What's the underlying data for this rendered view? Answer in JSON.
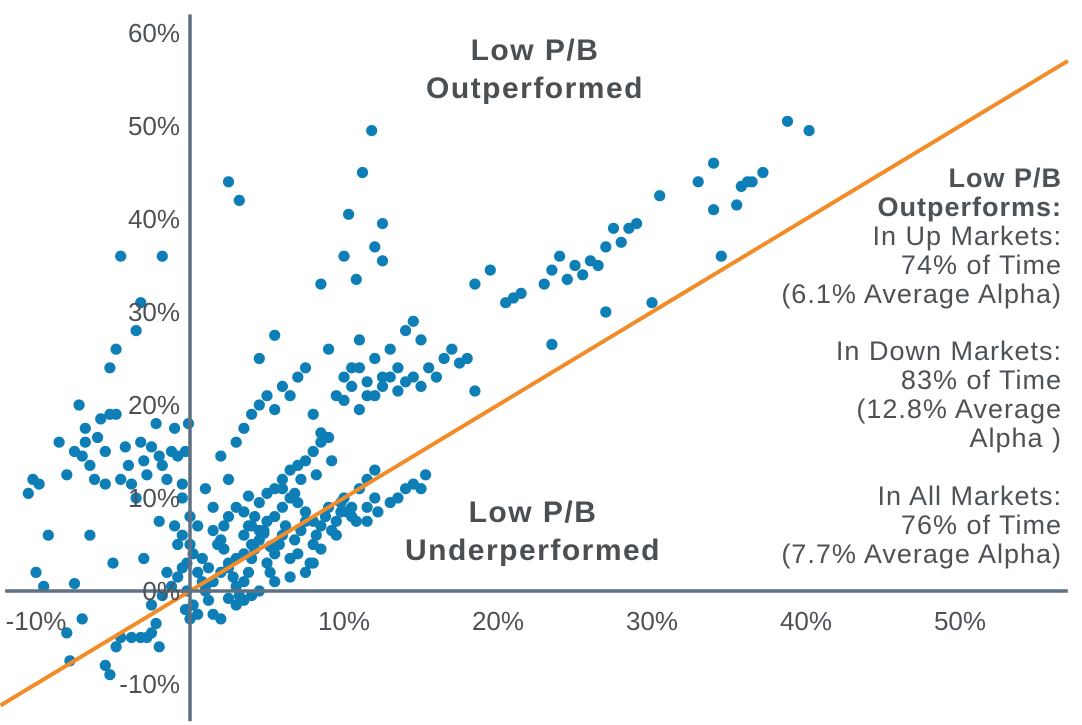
{
  "chart_data": {
    "type": "scatter",
    "xlim": [
      -12,
      57
    ],
    "ylim": [
      -14,
      62
    ],
    "x_ticks": [
      {
        "value": -10,
        "label": "-10%"
      },
      {
        "value": 10,
        "label": "10%"
      },
      {
        "value": 20,
        "label": "20%"
      },
      {
        "value": 30,
        "label": "30%"
      },
      {
        "value": 40,
        "label": "40%"
      },
      {
        "value": 50,
        "label": "50%"
      }
    ],
    "y_ticks": [
      {
        "value": -10,
        "label": "-10%"
      },
      {
        "value": 0,
        "label": "0%"
      },
      {
        "value": 10,
        "label": "10%"
      },
      {
        "value": 20,
        "label": "20%"
      },
      {
        "value": 30,
        "label": "30%"
      },
      {
        "value": 40,
        "label": "40%"
      },
      {
        "value": 50,
        "label": "50%"
      },
      {
        "value": 60,
        "label": "60%"
      }
    ],
    "reference_line": {
      "slope": 1,
      "intercept": 0
    },
    "colors": {
      "points": "#0e7eb6",
      "reference_line": "#f28c28",
      "axis": "#5e7182",
      "text": "#4d5257"
    },
    "regions": {
      "upper": [
        "Low P/B",
        "Outperformed"
      ],
      "lower": [
        "Low P/B",
        "Underperformed"
      ]
    },
    "annotation": {
      "bold_lines": [
        "Low P/B",
        "Outperforms:"
      ],
      "groups": [
        [
          "In Up Markets:",
          "74% of Time",
          "(6.1% Average Alpha)"
        ],
        [
          "In Down Markets:",
          "83% of Time",
          "(12.8% Average",
          "Alpha )"
        ],
        [
          "In All Markets:",
          "76% of Time",
          "(7.7% Average Alpha)"
        ]
      ]
    },
    "points": [
      [
        -10.2,
        12
      ],
      [
        -10.5,
        10.5
      ],
      [
        -9.8,
        11.5
      ],
      [
        -10,
        2
      ],
      [
        -9.5,
        0.5
      ],
      [
        -9.2,
        6
      ],
      [
        -8.5,
        16
      ],
      [
        -8,
        12.5
      ],
      [
        -7.5,
        15
      ],
      [
        -7.2,
        20
      ],
      [
        -6.8,
        16
      ],
      [
        -7,
        14.5
      ],
      [
        -6.5,
        13.5
      ],
      [
        -6.8,
        17.5
      ],
      [
        -6.2,
        12
      ],
      [
        -6,
        16.5
      ],
      [
        -5.8,
        18.5
      ],
      [
        -5.5,
        15
      ],
      [
        -5.2,
        19
      ],
      [
        -5.5,
        11.5
      ],
      [
        -4.8,
        19
      ],
      [
        -4.5,
        12
      ],
      [
        -4.2,
        15.5
      ],
      [
        -4,
        13.5
      ],
      [
        -3.8,
        11.5
      ],
      [
        -3.5,
        10
      ],
      [
        -3.2,
        16
      ],
      [
        -3,
        14
      ],
      [
        -2.8,
        12.5
      ],
      [
        -2.5,
        15.5
      ],
      [
        -2.2,
        18
      ],
      [
        -2,
        14.5
      ],
      [
        -1.8,
        13.5
      ],
      [
        -1.5,
        12
      ],
      [
        -1.2,
        15
      ],
      [
        -1,
        17.5
      ],
      [
        -0.8,
        14.5
      ],
      [
        -0.5,
        11.5
      ],
      [
        -0.3,
        15
      ],
      [
        -0.1,
        18
      ],
      [
        -5.2,
        24
      ],
      [
        -4.8,
        26
      ],
      [
        -4.5,
        36
      ],
      [
        -3.5,
        28
      ],
      [
        -3.2,
        31
      ],
      [
        -1.8,
        36
      ],
      [
        -6.5,
        6
      ],
      [
        -5,
        3
      ],
      [
        -3,
        3.5
      ],
      [
        -1.5,
        2
      ],
      [
        -2,
        7.5
      ],
      [
        -7.5,
        0.8
      ],
      [
        -8,
        -4.5
      ],
      [
        -7.8,
        -7.5
      ],
      [
        -7,
        -3
      ],
      [
        -5.5,
        -8
      ],
      [
        -5.2,
        -9
      ],
      [
        -4.8,
        -6
      ],
      [
        -4.5,
        -5
      ],
      [
        -3.8,
        -5
      ],
      [
        -3.2,
        -5
      ],
      [
        -2.8,
        -5
      ],
      [
        -2.5,
        -4.5
      ],
      [
        -2.2,
        -3.5
      ],
      [
        -2,
        -6
      ],
      [
        -2.5,
        -1.5
      ],
      [
        -1.8,
        -0.5
      ],
      [
        -1.2,
        0.5
      ],
      [
        -0.8,
        1.5
      ],
      [
        -0.5,
        2.5
      ],
      [
        -0.2,
        3
      ],
      [
        -0.8,
        5
      ],
      [
        -1,
        7
      ],
      [
        -0.5,
        6
      ],
      [
        0,
        5
      ],
      [
        0.2,
        4
      ],
      [
        0.5,
        2
      ],
      [
        0.8,
        1
      ],
      [
        1,
        0
      ],
      [
        1.2,
        -1
      ],
      [
        0.5,
        -2.5
      ],
      [
        0,
        -3
      ],
      [
        -0.3,
        -2
      ],
      [
        1.5,
        -2.5
      ],
      [
        2,
        -3
      ],
      [
        0.8,
        3.5
      ],
      [
        1.2,
        2.5
      ],
      [
        1.5,
        6.5
      ],
      [
        2,
        5.5
      ],
      [
        2.2,
        4.5
      ],
      [
        2.5,
        3
      ],
      [
        2.8,
        1.5
      ],
      [
        3,
        0.5
      ],
      [
        3.2,
        -0.5
      ],
      [
        3.5,
        1
      ],
      [
        3.8,
        2
      ],
      [
        4,
        3.5
      ],
      [
        4.2,
        4.5
      ],
      [
        4.5,
        5.5
      ],
      [
        4.8,
        6.5
      ],
      [
        5,
        3
      ],
      [
        5.2,
        2
      ],
      [
        5.5,
        4
      ],
      [
        5.8,
        5
      ],
      [
        6,
        6
      ],
      [
        6.2,
        7
      ],
      [
        6.5,
        3.5
      ],
      [
        6.8,
        5.5
      ],
      [
        7,
        4
      ],
      [
        7.2,
        6.5
      ],
      [
        7.5,
        7.5
      ],
      [
        7.8,
        3
      ],
      [
        8,
        5
      ],
      [
        8.2,
        6
      ],
      [
        8.5,
        7
      ],
      [
        8.8,
        8
      ],
      [
        9,
        9
      ],
      [
        9.2,
        6.5
      ],
      [
        9.5,
        7.5
      ],
      [
        9.8,
        8.5
      ],
      [
        10,
        10
      ],
      [
        10.5,
        9
      ],
      [
        11,
        11
      ],
      [
        11.5,
        12
      ],
      [
        12,
        13
      ],
      [
        2.5,
        8
      ],
      [
        3,
        9
      ],
      [
        3.5,
        8.5
      ],
      [
        4,
        7
      ],
      [
        4.5,
        9.5
      ],
      [
        5,
        10.5
      ],
      [
        5.5,
        11
      ],
      [
        6,
        12
      ],
      [
        6.5,
        13
      ],
      [
        7,
        13.5
      ],
      [
        7.5,
        14
      ],
      [
        8,
        15
      ],
      [
        8.5,
        16
      ],
      [
        9,
        16.5
      ],
      [
        2,
        14.5
      ],
      [
        2.5,
        12
      ],
      [
        3,
        16
      ],
      [
        3.5,
        17.5
      ],
      [
        4,
        19
      ],
      [
        4.5,
        20
      ],
      [
        5,
        21
      ],
      [
        5.5,
        19.5
      ],
      [
        6,
        22
      ],
      [
        6.5,
        21
      ],
      [
        7,
        23
      ],
      [
        7.5,
        24
      ],
      [
        8,
        19
      ],
      [
        8.5,
        17
      ],
      [
        9,
        26
      ],
      [
        9.5,
        21
      ],
      [
        10,
        23
      ],
      [
        10.5,
        22
      ],
      [
        11,
        24
      ],
      [
        11.5,
        22.5
      ],
      [
        12,
        21
      ],
      [
        12.5,
        22
      ],
      [
        13,
        23
      ],
      [
        13.5,
        21.5
      ],
      [
        14,
        22.5
      ],
      [
        14.5,
        23
      ],
      [
        15,
        22
      ],
      [
        15.5,
        24
      ],
      [
        16,
        23
      ],
      [
        16.5,
        25
      ],
      [
        17,
        26
      ],
      [
        17.5,
        24.5
      ],
      [
        18,
        25
      ],
      [
        18.5,
        21.5
      ],
      [
        10,
        20.5
      ],
      [
        10.5,
        24
      ],
      [
        11,
        19.5
      ],
      [
        11.5,
        21
      ],
      [
        12,
        25
      ],
      [
        12.5,
        23
      ],
      [
        13,
        26
      ],
      [
        13.5,
        24
      ],
      [
        14,
        28
      ],
      [
        14.5,
        29
      ],
      [
        15,
        27
      ],
      [
        11,
        27
      ],
      [
        1,
        11
      ],
      [
        1.5,
        9
      ],
      [
        0.5,
        7
      ],
      [
        0,
        8
      ],
      [
        -0.5,
        10
      ],
      [
        5.5,
        27.5
      ],
      [
        4.5,
        25
      ],
      [
        8.5,
        33
      ],
      [
        10,
        36
      ],
      [
        10.3,
        40.5
      ],
      [
        10.8,
        33.5
      ],
      [
        11.2,
        45
      ],
      [
        12,
        37
      ],
      [
        12.5,
        39.5
      ],
      [
        12.5,
        35.5
      ],
      [
        11.8,
        49.5
      ],
      [
        2.5,
        44
      ],
      [
        3.2,
        42
      ],
      [
        18.5,
        33
      ],
      [
        19.5,
        34.5
      ],
      [
        20.5,
        31
      ],
      [
        21,
        31.5
      ],
      [
        21.5,
        32
      ],
      [
        23,
        33
      ],
      [
        23.5,
        34.5
      ],
      [
        24,
        36
      ],
      [
        24.5,
        33.5
      ],
      [
        25,
        35
      ],
      [
        25.5,
        34
      ],
      [
        26,
        35.5
      ],
      [
        26.5,
        35
      ],
      [
        27,
        37
      ],
      [
        27.5,
        39
      ],
      [
        28,
        37.5
      ],
      [
        28.5,
        39
      ],
      [
        29,
        39.5
      ],
      [
        30.5,
        42.5
      ],
      [
        33,
        44
      ],
      [
        34,
        46
      ],
      [
        34,
        41
      ],
      [
        35.5,
        41.5
      ],
      [
        35.8,
        43.5
      ],
      [
        36.2,
        44
      ],
      [
        36.5,
        44
      ],
      [
        37.2,
        45
      ],
      [
        34.5,
        36
      ],
      [
        23.5,
        26.5
      ],
      [
        27,
        30
      ],
      [
        30,
        31
      ],
      [
        38.8,
        50.5
      ],
      [
        40.2,
        49.5
      ],
      [
        11.5,
        9
      ],
      [
        12,
        10
      ],
      [
        13,
        9.5
      ],
      [
        13.5,
        10
      ],
      [
        14,
        11
      ],
      [
        14.5,
        11.5
      ],
      [
        15,
        11
      ],
      [
        15.3,
        12.5
      ],
      [
        10.5,
        8
      ],
      [
        9.5,
        6
      ],
      [
        8.5,
        4.5
      ],
      [
        8,
        3
      ],
      [
        7.5,
        2
      ],
      [
        6.5,
        1.5
      ],
      [
        5.5,
        1
      ],
      [
        4.5,
        0
      ],
      [
        4,
        -0.5
      ],
      [
        3.5,
        -1
      ],
      [
        3,
        -1.5
      ],
      [
        2.5,
        -0.8
      ],
      [
        9.8,
        9.5
      ],
      [
        10.2,
        8.5
      ],
      [
        10.8,
        7.5
      ],
      [
        11.5,
        7.5
      ],
      [
        12.2,
        8.5
      ],
      [
        8,
        7.5
      ],
      [
        7.5,
        8.5
      ],
      [
        7,
        9.5
      ],
      [
        6.5,
        10
      ],
      [
        6,
        9
      ],
      [
        5.5,
        8
      ],
      [
        5,
        7.5
      ],
      [
        4.5,
        6.5
      ],
      [
        4,
        5
      ],
      [
        3.5,
        4
      ],
      [
        3,
        3.5
      ],
      [
        2.5,
        2.5
      ],
      [
        2,
        2
      ],
      [
        1.5,
        1
      ],
      [
        1,
        0.5
      ],
      [
        6,
        11
      ],
      [
        6.8,
        10.5
      ],
      [
        7.2,
        12
      ],
      [
        8.2,
        12.5
      ],
      [
        9.2,
        14
      ],
      [
        3.5,
        6
      ],
      [
        3.8,
        7
      ],
      [
        4.2,
        8
      ],
      [
        4.8,
        6.2
      ],
      [
        5.2,
        4.8
      ],
      [
        0.2,
        -1.5
      ],
      [
        -0.2,
        0
      ],
      [
        2.2,
        7
      ],
      [
        1.8,
        5
      ],
      [
        3.8,
        10.2
      ]
    ]
  }
}
